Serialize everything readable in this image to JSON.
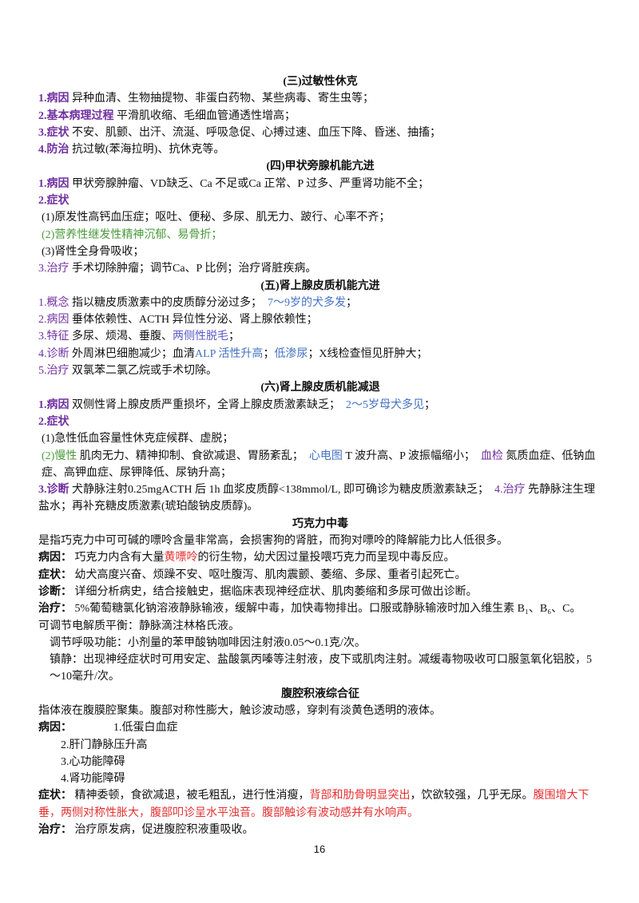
{
  "sections": [
    {
      "title": "(三)过敏性休克",
      "lines": [
        [
          {
            "text": "1.病因",
            "color": "#7030a0",
            "bold": true
          },
          {
            "text": " 异种血清、生物抽提物、非蛋白药物、某些病毒、寄生虫等；"
          }
        ],
        [
          {
            "text": "2.基本病理过程",
            "color": "#7030a0",
            "bold": true
          },
          {
            "text": " 平滑肌收缩、毛细血管通透性增高；"
          }
        ],
        [
          {
            "text": "3.症状",
            "color": "#7030a0",
            "bold": true
          },
          {
            "text": " 不安、肌颤、出汗、流涎、呼吸急促、心搏过速、血压下降、昏迷、抽搐；"
          }
        ],
        [
          {
            "text": "4.防治",
            "color": "#7030a0",
            "bold": true
          },
          {
            "text": " 抗过敏(苯海拉明)、抗休克等。"
          }
        ]
      ]
    },
    {
      "title": "(四)甲状旁腺机能亢进",
      "lines": [
        [
          {
            "text": "1.病因",
            "color": "#7030a0",
            "bold": true
          },
          {
            "text": " 甲状旁腺肿瘤、VD缺乏、Ca 不足或Ca 正常、P 过多、严重肾功能不全；"
          }
        ],
        [
          {
            "text": "2.症状",
            "color": "#7030a0",
            "bold": true
          }
        ],
        [
          {
            "text": "(1)原发性高钙血压症；呕吐、便秘、多尿、肌无力、跛行、心率不齐；"
          }
        ],
        [
          {
            "text": "(2)营养性继发性精神沉郁、易骨折；",
            "color": "#4a9a3a"
          }
        ],
        [
          {
            "text": "(3)肾性全身骨吸收；"
          }
        ],
        [
          {
            "text": "3.治疗",
            "color": "#7030a0"
          },
          {
            "text": " 手术切除肿瘤；调节Ca、P 比例；治疗肾脏疾病。"
          }
        ]
      ]
    },
    {
      "title": "(五)肾上腺皮质机能亢进",
      "lines": [
        [
          {
            "text": "1.概念",
            "color": "#7030a0"
          },
          {
            "text": " 指以糖皮质激素中的皮质醇分泌过多；"
          },
          {
            "text": "　7～9岁的犬多发",
            "color": "#4472c4"
          },
          {
            "text": "；"
          }
        ],
        [
          {
            "text": "2.病因",
            "color": "#7030a0"
          },
          {
            "text": " 垂体依赖性、ACTH 异位性分泌、肾上腺依赖性；"
          }
        ],
        [
          {
            "text": "3.特征",
            "color": "#7030a0"
          },
          {
            "text": " 多尿、烦渴、垂腹、"
          },
          {
            "text": "两侧性脱毛",
            "color": "#5b5bc8"
          },
          {
            "text": "；"
          }
        ],
        [
          {
            "text": "4.诊断",
            "color": "#7030a0"
          },
          {
            "text": " 外周淋巴细胞减少；血清"
          },
          {
            "text": "ALP 活性升高",
            "color": "#4472c4"
          },
          {
            "text": "；"
          },
          {
            "text": "低渗尿",
            "color": "#4472c4"
          },
          {
            "text": "；X线检查恒见肝肿大；"
          }
        ],
        [
          {
            "text": "5.治疗",
            "color": "#7030a0"
          },
          {
            "text": " 双氯苯二氯乙烷或手术切除。"
          }
        ]
      ]
    },
    {
      "title": "(六)肾上腺皮质机能减退",
      "lines": [
        [
          {
            "text": "1.病因",
            "color": "#7030a0",
            "bold": true
          },
          {
            "text": " 双侧性肾上腺皮质严重损坏，全肾上腺皮质激素缺乏；"
          },
          {
            "text": "　2～5岁母犬多见",
            "color": "#4472c4"
          },
          {
            "text": "；"
          }
        ],
        [
          {
            "text": "2.症状",
            "color": "#7030a0",
            "bold": true
          }
        ],
        [
          {
            "text": "(1)急性低血容量性休克症候群、虚脱；"
          }
        ],
        [
          {
            "text": "(2)慢性",
            "color": "#4a9a3a"
          },
          {
            "text": " 肌肉无力、精神抑制、食欲减退、胃肠紊乱；"
          },
          {
            "text": "　心电图",
            "color": "#4472c4"
          },
          {
            "text": " T 波升高、P 波振幅缩小；"
          },
          {
            "text": "　血检",
            "color": "#7030a0"
          },
          {
            "text": " 氮质血症、低钠血症、高钾血症、尿钾降低、尿钠升高；"
          }
        ],
        [
          {
            "text": "3.诊断",
            "color": "#7030a0",
            "bold": true
          },
          {
            "text": " 犬静脉注射0.25mgACTH 后 1h 血浆皮质醇<138mmol/L, 即可确诊为糖皮质激素缺乏；"
          },
          {
            "text": "　4.治疗",
            "color": "#7030a0"
          },
          {
            "text": " 先静脉注生理盐水；再补充糖皮质激素(琥珀酸钠皮质醇)。"
          }
        ]
      ]
    },
    {
      "title": "巧克力中毒",
      "lines": [
        [
          {
            "text": "是指巧克力中可可碱的嘌呤含量非常高，会损害狗的肾脏，而狗对嘌呤的降解能力比人低很多。"
          }
        ],
        [
          {
            "text": "病因：",
            "bold": true
          },
          {
            "text": " 巧克力内含有大量"
          },
          {
            "text": "黄嘌呤",
            "color": "#e53030"
          },
          {
            "text": "的衍生物，幼犬因过量投喂巧克力而呈现中毒反应。"
          }
        ],
        [
          {
            "text": "症状：",
            "bold": true
          },
          {
            "text": " 幼犬高度兴奋、烦躁不安、呕吐腹泻、肌肉震颤、萎缩、多尿、重者引起死亡。"
          }
        ],
        [
          {
            "text": "诊断：",
            "bold": true
          },
          {
            "text": " 详细分析病史，结合接触史，据临床表现神经症状、肌肉萎缩和多尿可做出诊断。"
          }
        ],
        [
          {
            "text": "治疗：",
            "bold": true
          },
          {
            "text": " 5%葡萄糖氯化钠溶液静脉输液，缓解中毒，加快毒物排出。口服或静脉输液时加入维生素 B₁、B₆、C。"
          }
        ],
        [
          {
            "text": "可调节电解质平衡：静脉滴注林格氏液。"
          }
        ],
        [
          {
            "text": "调节呼吸功能：小剂量的苯甲酸钠咖啡因注射液0.05～0.1克/次。"
          }
        ],
        [
          {
            "text": "镇静：出现神经症状时可用安定、盐酸氯丙嗪等注射液，皮下或肌肉注射。减缓毒物吸收可口服氢氧化铝胶，5～10毫升/次。"
          }
        ]
      ]
    },
    {
      "title": "腹腔积液综合征",
      "lines": [
        [
          {
            "text": "指体液在腹膜腔聚集。腹部对称性膨大，触诊波动感，穿刺有淡黄色透明的液体。"
          }
        ],
        [
          {
            "text": "病因：",
            "bold": true
          },
          {
            "text": "1.低蛋白血症"
          }
        ],
        [
          {
            "text": "2.肝门静脉压升高"
          }
        ],
        [
          {
            "text": "3.心功能障碍"
          }
        ],
        [
          {
            "text": "4.肾功能障碍"
          }
        ],
        [
          {
            "text": "症状：",
            "bold": true
          },
          {
            "text": " 精神委顿，食欲减退，被毛粗乱，进行性消瘦，"
          },
          {
            "text": "背部和肋骨明显突出",
            "color": "#e53030"
          },
          {
            "text": "，饮欲较强，几乎无尿。"
          },
          {
            "text": "腹围增大下垂，两侧对称性胀大，腹部叩诊呈水平浊音。腹部触诊有波动感并有水响声。",
            "color": "#e53030"
          }
        ],
        [
          {
            "text": "治疗：",
            "bold": true
          },
          {
            "text": " 治疗原发病，促进腹腔积液重吸收。"
          }
        ]
      ]
    }
  ],
  "page_number": "16"
}
